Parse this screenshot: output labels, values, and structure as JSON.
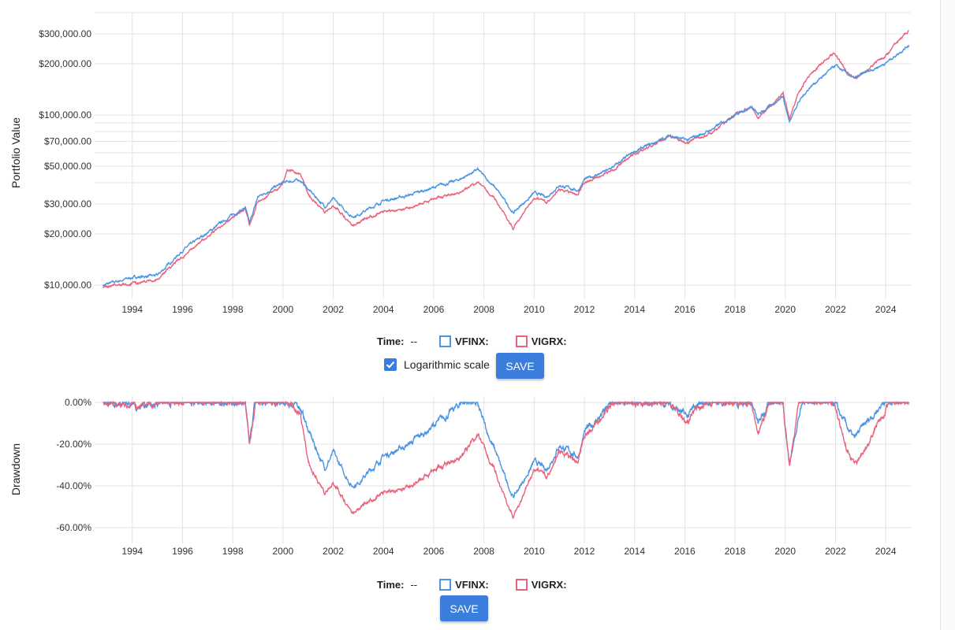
{
  "colors": {
    "VFINX": "#4a94e4",
    "VIGRX": "#e8647c",
    "button": "#3b7ddd",
    "grid": "#e3e3e3"
  },
  "top_controls": {
    "time_label": "Time:",
    "time_value": "--",
    "series": [
      "VFINX:",
      "VIGRX:"
    ],
    "log_label": "Logarithmic scale",
    "log_checked": true,
    "save_label": "SAVE"
  },
  "bottom_controls": {
    "time_label": "Time:",
    "time_value": "--",
    "series": [
      "VFINX:",
      "VIGRX:"
    ],
    "save_label": "SAVE"
  },
  "chart_data": [
    {
      "type": "line",
      "ylabel": "Portfolio Value",
      "yscale": "log",
      "ylim": [
        9000,
        400000
      ],
      "yticks": [
        10000,
        20000,
        30000,
        50000,
        70000,
        100000,
        200000,
        300000
      ],
      "ytick_labels": [
        "$10,000.00",
        "$20,000.00",
        "$30,000.00",
        "$50,000.00",
        "$70,000.00",
        "$100,000.00",
        "$200,000.00",
        "$300,000.00"
      ],
      "xlim": [
        "1992-07",
        "2025-01"
      ],
      "xticks": [
        "1994",
        "1996",
        "1998",
        "2000",
        "2002",
        "2004",
        "2006",
        "2008",
        "2010",
        "2012",
        "2014",
        "2016",
        "2018",
        "2020",
        "2022",
        "2024"
      ],
      "grid": true,
      "series": [
        {
          "name": "VFINX",
          "points": [
            [
              "1992-11",
              10000
            ],
            [
              "1994-01",
              11100
            ],
            [
              "1995-01",
              11400
            ],
            [
              "1996-01",
              16000
            ],
            [
              "1997-01",
              20400
            ],
            [
              "1998-01",
              26000
            ],
            [
              "1998-07",
              28500
            ],
            [
              "1998-09",
              23000
            ],
            [
              "1999-01",
              33000
            ],
            [
              "2000-01",
              40000
            ],
            [
              "2000-09",
              41600
            ],
            [
              "2001-01",
              36700
            ],
            [
              "2001-09",
              29000
            ],
            [
              "2002-01",
              32000
            ],
            [
              "2002-10",
              25300
            ],
            [
              "2003-01",
              26000
            ],
            [
              "2004-01",
              31300
            ],
            [
              "2005-01",
              33700
            ],
            [
              "2006-01",
              37500
            ],
            [
              "2007-01",
              41600
            ],
            [
              "2007-10",
              47800
            ],
            [
              "2008-07",
              36700
            ],
            [
              "2009-03",
              26600
            ],
            [
              "2010-01",
              34800
            ],
            [
              "2010-07",
              33000
            ],
            [
              "2011-01",
              38700
            ],
            [
              "2011-10",
              36000
            ],
            [
              "2012-01",
              41600
            ],
            [
              "2013-01",
              47800
            ],
            [
              "2014-01",
              61000
            ],
            [
              "2015-01",
              71000
            ],
            [
              "2015-06",
              76000
            ],
            [
              "2016-02",
              71000
            ],
            [
              "2017-01",
              81000
            ],
            [
              "2018-01",
              101000
            ],
            [
              "2018-09",
              112000
            ],
            [
              "2018-12",
              100000
            ],
            [
              "2019-12",
              129000
            ],
            [
              "2020-03",
              91000
            ],
            [
              "2020-07",
              118000
            ],
            [
              "2021-01",
              147000
            ],
            [
              "2022-01",
              195000
            ],
            [
              "2022-10",
              163000
            ],
            [
              "2023-01",
              172000
            ],
            [
              "2024-01",
              202000
            ],
            [
              "2024-12",
              258000
            ]
          ]
        },
        {
          "name": "VIGRX",
          "points": [
            [
              "1992-11",
              9700
            ],
            [
              "1994-01",
              10200
            ],
            [
              "1995-01",
              10800
            ],
            [
              "1996-01",
              14800
            ],
            [
              "1997-01",
              19400
            ],
            [
              "1998-01",
              25300
            ],
            [
              "1998-07",
              28000
            ],
            [
              "1998-09",
              22500
            ],
            [
              "1999-01",
              31000
            ],
            [
              "2000-01",
              38700
            ],
            [
              "2000-03",
              48000
            ],
            [
              "2000-09",
              45000
            ],
            [
              "2001-01",
              34800
            ],
            [
              "2001-09",
              26600
            ],
            [
              "2002-01",
              29700
            ],
            [
              "2002-10",
              22700
            ],
            [
              "2003-01",
              23400
            ],
            [
              "2004-01",
              27200
            ],
            [
              "2005-01",
              28100
            ],
            [
              "2006-01",
              32300
            ],
            [
              "2007-01",
              34800
            ],
            [
              "2007-10",
              40000
            ],
            [
              "2008-07",
              31300
            ],
            [
              "2009-03",
              21600
            ],
            [
              "2010-01",
              33000
            ],
            [
              "2010-07",
              31000
            ],
            [
              "2011-01",
              36700
            ],
            [
              "2011-10",
              34000
            ],
            [
              "2012-01",
              40000
            ],
            [
              "2013-01",
              46000
            ],
            [
              "2014-01",
              59000
            ],
            [
              "2015-01",
              69700
            ],
            [
              "2015-06",
              76000
            ],
            [
              "2016-02",
              68000
            ],
            [
              "2017-01",
              77000
            ],
            [
              "2018-01",
              101000
            ],
            [
              "2018-09",
              112000
            ],
            [
              "2018-12",
              96000
            ],
            [
              "2019-12",
              135000
            ],
            [
              "2020-03",
              95000
            ],
            [
              "2020-07",
              135000
            ],
            [
              "2021-01",
              172000
            ],
            [
              "2021-12",
              232000
            ],
            [
              "2022-10",
              160000
            ],
            [
              "2023-01",
              172000
            ],
            [
              "2024-01",
              225000
            ],
            [
              "2024-12",
              315000
            ]
          ]
        }
      ]
    },
    {
      "type": "line",
      "ylabel": "Drawdown",
      "ylim": [
        -64,
        2
      ],
      "yticks": [
        0,
        -20,
        -40,
        -60
      ],
      "ytick_labels": [
        "0.00%",
        "-20.00%",
        "-40.00%",
        "-60.00%"
      ],
      "xlim": [
        "1992-07",
        "2025-01"
      ],
      "xticks": [
        "1994",
        "1996",
        "1998",
        "2000",
        "2002",
        "2004",
        "2006",
        "2008",
        "2010",
        "2012",
        "2014",
        "2016",
        "2018",
        "2020",
        "2022",
        "2024"
      ],
      "grid": true,
      "series": [
        {
          "name": "VFINX"
        },
        {
          "name": "VIGRX"
        }
      ]
    }
  ]
}
